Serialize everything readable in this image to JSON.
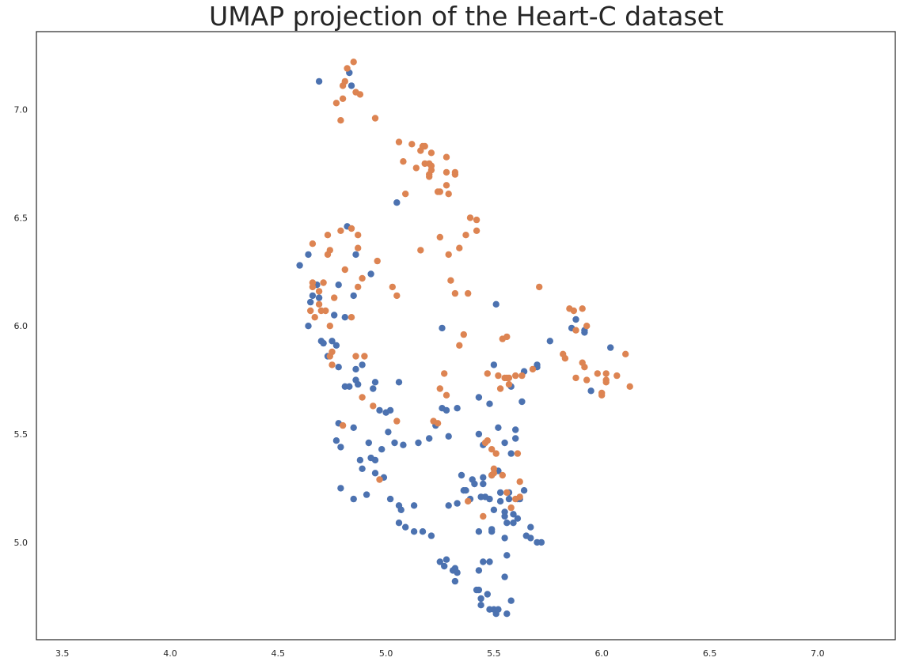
{
  "chart_data": {
    "type": "scatter",
    "title": "UMAP projection of the Heart-C dataset",
    "xlabel": "",
    "ylabel": "",
    "xlim": [
      3.38,
      7.36
    ],
    "ylim": [
      4.55,
      7.36
    ],
    "grid": false,
    "x_ticks": [
      "3.5",
      "4.0",
      "4.5",
      "5.0",
      "5.5",
      "6.0",
      "6.5",
      "7.0"
    ],
    "y_ticks": [
      "5.0",
      "5.5",
      "6.0",
      "6.5",
      "7.0"
    ],
    "series": [
      {
        "color": "#4c72b0",
        "points": [
          [
            4.69,
            7.13
          ],
          [
            4.83,
            7.17
          ],
          [
            4.84,
            7.11
          ],
          [
            5.05,
            6.57
          ],
          [
            4.6,
            6.28
          ],
          [
            4.64,
            6.33
          ],
          [
            4.86,
            6.33
          ],
          [
            4.82,
            6.46
          ],
          [
            4.93,
            6.24
          ],
          [
            4.68,
            6.19
          ],
          [
            4.78,
            6.19
          ],
          [
            4.85,
            6.14
          ],
          [
            4.66,
            6.14
          ],
          [
            4.65,
            6.11
          ],
          [
            4.69,
            6.13
          ],
          [
            4.64,
            6.0
          ],
          [
            4.76,
            6.05
          ],
          [
            4.81,
            6.04
          ],
          [
            4.7,
            5.93
          ],
          [
            4.71,
            5.92
          ],
          [
            4.75,
            5.93
          ],
          [
            4.77,
            5.91
          ],
          [
            4.73,
            5.86
          ],
          [
            4.78,
            5.81
          ],
          [
            4.86,
            5.8
          ],
          [
            4.89,
            5.82
          ],
          [
            4.86,
            5.75
          ],
          [
            4.87,
            5.73
          ],
          [
            4.81,
            5.72
          ],
          [
            4.83,
            5.72
          ],
          [
            4.95,
            5.74
          ],
          [
            4.94,
            5.71
          ],
          [
            4.97,
            5.61
          ],
          [
            5.0,
            5.6
          ],
          [
            5.02,
            5.61
          ],
          [
            5.06,
            5.74
          ],
          [
            5.01,
            5.51
          ],
          [
            5.04,
            5.46
          ],
          [
            5.08,
            5.45
          ],
          [
            4.78,
            5.55
          ],
          [
            4.77,
            5.47
          ],
          [
            4.79,
            5.44
          ],
          [
            4.85,
            5.53
          ],
          [
            4.92,
            5.46
          ],
          [
            4.93,
            5.39
          ],
          [
            4.95,
            5.38
          ],
          [
            4.98,
            5.43
          ],
          [
            4.88,
            5.38
          ],
          [
            4.89,
            5.34
          ],
          [
            4.95,
            5.32
          ],
          [
            4.99,
            5.3
          ],
          [
            4.79,
            5.25
          ],
          [
            4.85,
            5.2
          ],
          [
            4.91,
            5.22
          ],
          [
            5.02,
            5.2
          ],
          [
            5.06,
            5.17
          ],
          [
            5.07,
            5.15
          ],
          [
            5.06,
            5.09
          ],
          [
            5.09,
            5.07
          ],
          [
            5.13,
            5.05
          ],
          [
            5.13,
            5.17
          ],
          [
            5.17,
            5.05
          ],
          [
            5.21,
            5.03
          ],
          [
            5.15,
            5.46
          ],
          [
            5.2,
            5.48
          ],
          [
            5.23,
            5.54
          ],
          [
            5.26,
            5.99
          ],
          [
            5.26,
            5.62
          ],
          [
            5.28,
            5.61
          ],
          [
            5.33,
            5.62
          ],
          [
            5.29,
            5.49
          ],
          [
            5.25,
            4.91
          ],
          [
            5.28,
            4.92
          ],
          [
            5.27,
            4.89
          ],
          [
            5.31,
            4.87
          ],
          [
            5.32,
            4.88
          ],
          [
            5.33,
            4.86
          ],
          [
            5.32,
            4.82
          ],
          [
            5.29,
            5.17
          ],
          [
            5.33,
            5.18
          ],
          [
            5.35,
            5.31
          ],
          [
            5.36,
            5.24
          ],
          [
            5.37,
            5.24
          ],
          [
            5.39,
            5.2
          ],
          [
            5.4,
            5.29
          ],
          [
            5.41,
            5.27
          ],
          [
            5.42,
            4.78
          ],
          [
            5.43,
            4.78
          ],
          [
            5.44,
            4.74
          ],
          [
            5.44,
            4.71
          ],
          [
            5.47,
            4.76
          ],
          [
            5.48,
            4.69
          ],
          [
            5.5,
            4.69
          ],
          [
            5.51,
            4.67
          ],
          [
            5.52,
            4.69
          ],
          [
            5.56,
            4.67
          ],
          [
            5.43,
            4.87
          ],
          [
            5.45,
            4.91
          ],
          [
            5.48,
            4.91
          ],
          [
            5.55,
            4.84
          ],
          [
            5.58,
            4.73
          ],
          [
            5.43,
            5.05
          ],
          [
            5.49,
            5.05
          ],
          [
            5.49,
            5.06
          ],
          [
            5.55,
            5.02
          ],
          [
            5.56,
            5.09
          ],
          [
            5.56,
            4.94
          ],
          [
            5.59,
            5.13
          ],
          [
            5.61,
            5.11
          ],
          [
            5.59,
            5.09
          ],
          [
            5.53,
            5.19
          ],
          [
            5.55,
            5.12
          ],
          [
            5.55,
            5.14
          ],
          [
            5.5,
            5.15
          ],
          [
            5.44,
            5.21
          ],
          [
            5.46,
            5.21
          ],
          [
            5.48,
            5.2
          ],
          [
            5.45,
            5.27
          ],
          [
            5.45,
            5.3
          ],
          [
            5.49,
            5.31
          ],
          [
            5.52,
            5.33
          ],
          [
            5.53,
            5.23
          ],
          [
            5.57,
            5.23
          ],
          [
            5.57,
            5.2
          ],
          [
            5.61,
            5.2
          ],
          [
            5.62,
            5.2
          ],
          [
            5.64,
            5.24
          ],
          [
            5.65,
            5.03
          ],
          [
            5.67,
            5.02
          ],
          [
            5.67,
            5.07
          ],
          [
            5.7,
            5.0
          ],
          [
            5.72,
            5.0
          ],
          [
            5.43,
            5.5
          ],
          [
            5.45,
            5.45
          ],
          [
            5.52,
            5.53
          ],
          [
            5.55,
            5.46
          ],
          [
            5.58,
            5.41
          ],
          [
            5.6,
            5.48
          ],
          [
            5.6,
            5.52
          ],
          [
            5.43,
            5.67
          ],
          [
            5.48,
            5.64
          ],
          [
            5.5,
            5.82
          ],
          [
            5.51,
            6.1
          ],
          [
            5.58,
            5.72
          ],
          [
            5.63,
            5.65
          ],
          [
            5.64,
            5.79
          ],
          [
            5.7,
            5.81
          ],
          [
            5.7,
            5.82
          ],
          [
            5.76,
            5.93
          ],
          [
            5.86,
            5.99
          ],
          [
            5.88,
            6.03
          ],
          [
            5.92,
            5.97
          ],
          [
            5.92,
            5.98
          ],
          [
            5.95,
            5.7
          ],
          [
            6.04,
            5.9
          ]
        ]
      },
      {
        "color": "#dd8452",
        "points": [
          [
            4.85,
            7.22
          ],
          [
            4.82,
            7.19
          ],
          [
            4.8,
            7.11
          ],
          [
            4.81,
            7.13
          ],
          [
            4.8,
            7.05
          ],
          [
            4.77,
            7.03
          ],
          [
            4.79,
            6.95
          ],
          [
            4.86,
            7.08
          ],
          [
            4.88,
            7.07
          ],
          [
            4.95,
            6.96
          ],
          [
            5.06,
            6.85
          ],
          [
            5.12,
            6.84
          ],
          [
            5.16,
            6.81
          ],
          [
            5.17,
            6.83
          ],
          [
            5.18,
            6.83
          ],
          [
            5.21,
            6.8
          ],
          [
            5.28,
            6.78
          ],
          [
            5.08,
            6.76
          ],
          [
            5.14,
            6.73
          ],
          [
            5.18,
            6.75
          ],
          [
            5.2,
            6.75
          ],
          [
            5.21,
            6.74
          ],
          [
            5.21,
            6.72
          ],
          [
            5.2,
            6.7
          ],
          [
            5.2,
            6.69
          ],
          [
            5.28,
            6.71
          ],
          [
            5.32,
            6.71
          ],
          [
            5.32,
            6.7
          ],
          [
            5.28,
            6.65
          ],
          [
            5.25,
            6.62
          ],
          [
            5.24,
            6.62
          ],
          [
            5.29,
            6.61
          ],
          [
            5.09,
            6.61
          ],
          [
            5.39,
            6.5
          ],
          [
            5.42,
            6.49
          ],
          [
            5.37,
            6.42
          ],
          [
            5.42,
            6.44
          ],
          [
            5.25,
            6.41
          ],
          [
            5.34,
            6.36
          ],
          [
            5.29,
            6.33
          ],
          [
            5.16,
            6.35
          ],
          [
            4.79,
            6.44
          ],
          [
            4.84,
            6.45
          ],
          [
            4.87,
            6.42
          ],
          [
            4.73,
            6.42
          ],
          [
            4.66,
            6.38
          ],
          [
            4.74,
            6.35
          ],
          [
            4.73,
            6.33
          ],
          [
            4.87,
            6.36
          ],
          [
            4.96,
            6.3
          ],
          [
            4.81,
            6.26
          ],
          [
            4.89,
            6.22
          ],
          [
            4.66,
            6.2
          ],
          [
            4.71,
            6.2
          ],
          [
            4.66,
            6.18
          ],
          [
            4.69,
            6.16
          ],
          [
            4.87,
            6.18
          ],
          [
            5.03,
            6.18
          ],
          [
            5.05,
            6.14
          ],
          [
            5.3,
            6.21
          ],
          [
            5.32,
            6.15
          ],
          [
            5.38,
            6.15
          ],
          [
            4.76,
            6.13
          ],
          [
            4.69,
            6.1
          ],
          [
            4.65,
            6.07
          ],
          [
            4.7,
            6.07
          ],
          [
            4.72,
            6.07
          ],
          [
            4.67,
            6.04
          ],
          [
            4.84,
            6.04
          ],
          [
            4.74,
            6.0
          ],
          [
            4.75,
            5.88
          ],
          [
            4.74,
            5.86
          ],
          [
            4.86,
            5.86
          ],
          [
            4.9,
            5.86
          ],
          [
            4.75,
            5.82
          ],
          [
            5.36,
            5.96
          ],
          [
            5.34,
            5.91
          ],
          [
            5.54,
            5.94
          ],
          [
            5.56,
            5.95
          ],
          [
            5.71,
            6.18
          ],
          [
            5.85,
            6.08
          ],
          [
            5.87,
            6.07
          ],
          [
            5.91,
            6.08
          ],
          [
            5.88,
            5.98
          ],
          [
            5.93,
            6.0
          ],
          [
            5.82,
            5.87
          ],
          [
            5.83,
            5.85
          ],
          [
            5.91,
            5.83
          ],
          [
            5.92,
            5.81
          ],
          [
            5.98,
            5.78
          ],
          [
            6.02,
            5.78
          ],
          [
            6.07,
            5.77
          ],
          [
            6.11,
            5.87
          ],
          [
            5.93,
            5.75
          ],
          [
            5.88,
            5.76
          ],
          [
            6.02,
            5.75
          ],
          [
            6.02,
            5.74
          ],
          [
            6.0,
            5.69
          ],
          [
            6.0,
            5.68
          ],
          [
            6.13,
            5.72
          ],
          [
            5.27,
            5.78
          ],
          [
            5.25,
            5.71
          ],
          [
            5.28,
            5.68
          ],
          [
            5.68,
            5.8
          ],
          [
            5.63,
            5.77
          ],
          [
            5.6,
            5.77
          ],
          [
            5.56,
            5.76
          ],
          [
            5.55,
            5.76
          ],
          [
            5.57,
            5.76
          ],
          [
            5.52,
            5.77
          ],
          [
            5.47,
            5.78
          ],
          [
            5.57,
            5.73
          ],
          [
            5.53,
            5.71
          ],
          [
            4.89,
            5.67
          ],
          [
            4.94,
            5.63
          ],
          [
            5.05,
            5.56
          ],
          [
            5.22,
            5.56
          ],
          [
            5.24,
            5.55
          ],
          [
            4.8,
            5.54
          ],
          [
            5.47,
            5.47
          ],
          [
            5.46,
            5.46
          ],
          [
            5.49,
            5.43
          ],
          [
            5.51,
            5.41
          ],
          [
            5.61,
            5.41
          ],
          [
            5.5,
            5.34
          ],
          [
            5.54,
            5.31
          ],
          [
            5.5,
            5.32
          ],
          [
            5.49,
            5.31
          ],
          [
            4.97,
            5.29
          ],
          [
            5.62,
            5.28
          ],
          [
            5.56,
            5.23
          ],
          [
            5.62,
            5.21
          ],
          [
            5.6,
            5.2
          ],
          [
            5.58,
            5.16
          ],
          [
            5.38,
            5.19
          ],
          [
            5.45,
            5.12
          ]
        ]
      }
    ]
  }
}
